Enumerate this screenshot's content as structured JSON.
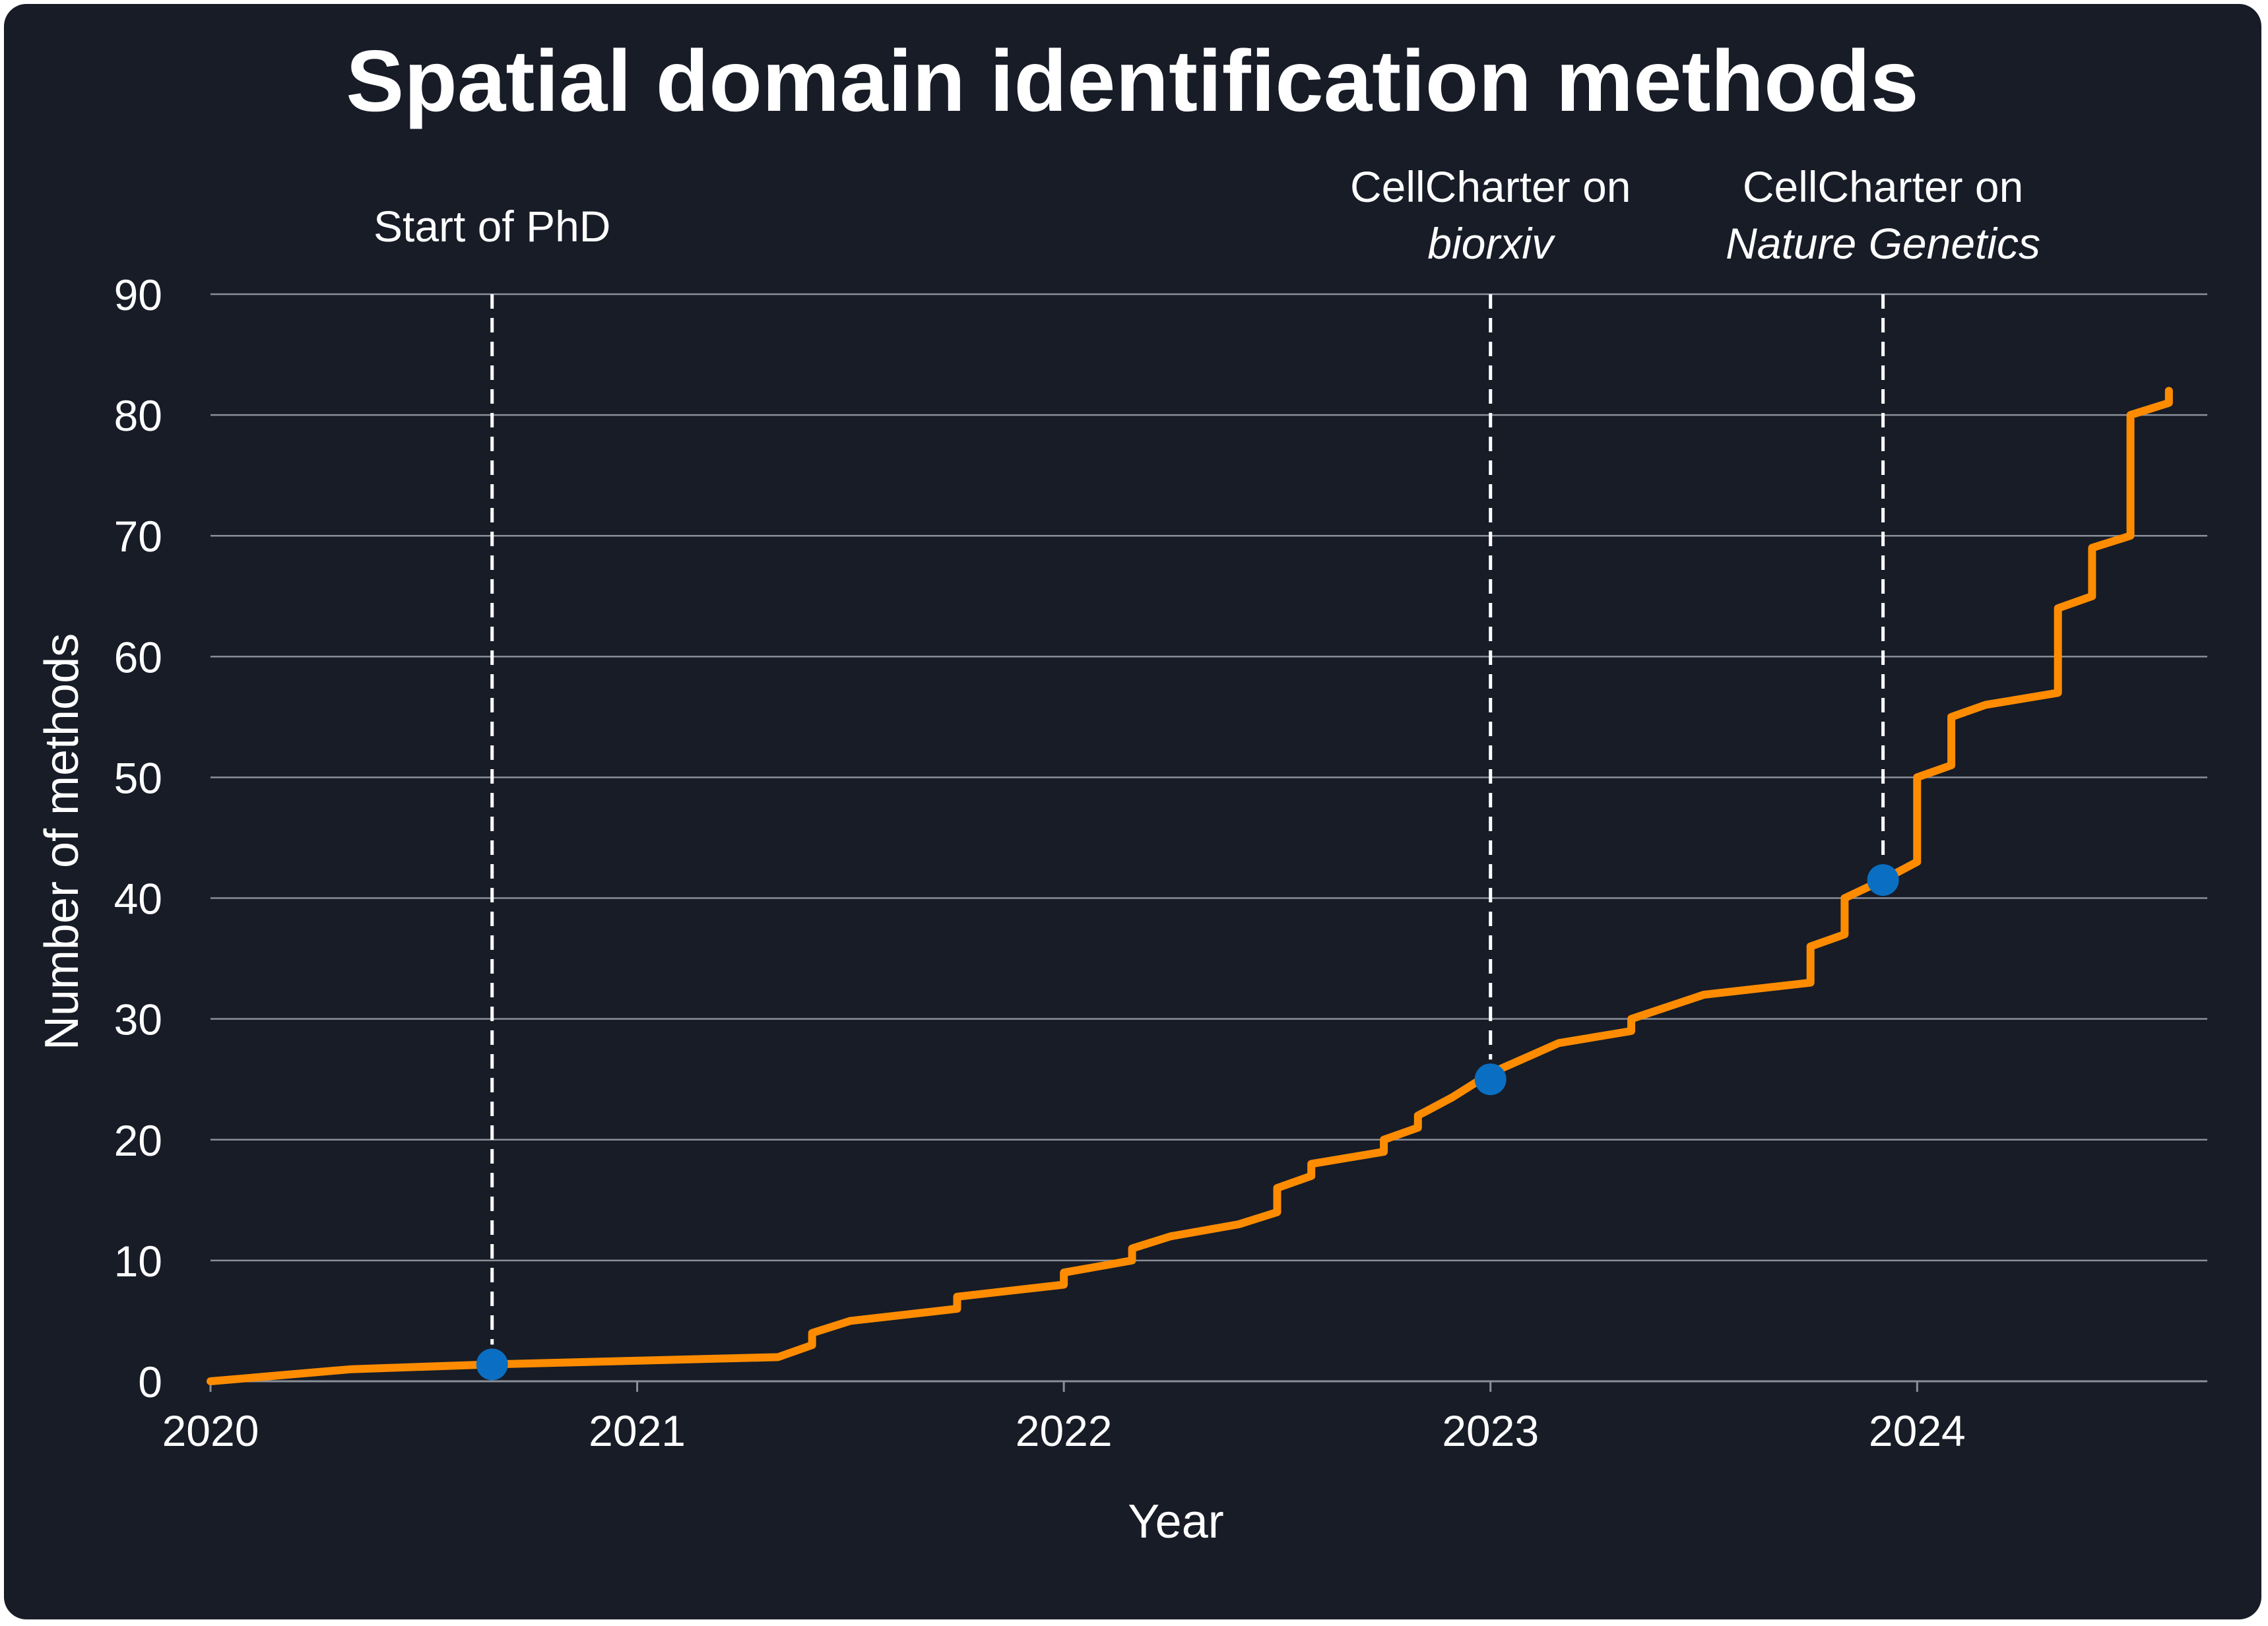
{
  "colors": {
    "background": "#171c27",
    "line": "#ff8c00",
    "marker": "#0a6fc2",
    "grid": "#8a8f99",
    "text": "#ffffff"
  },
  "chart_data": {
    "type": "line",
    "title": "Spatial domain identification methods",
    "xlabel": "Year",
    "ylabel": "Number of methods",
    "xlim": [
      2020,
      2024.68
    ],
    "ylim": [
      0,
      90
    ],
    "x_ticks": [
      "2020",
      "2021",
      "2022",
      "2023",
      "2024"
    ],
    "y_ticks": [
      "0",
      "10",
      "20",
      "30",
      "40",
      "50",
      "60",
      "70",
      "80",
      "90"
    ],
    "grid": "horizontal",
    "series": [
      {
        "x": [
          2020.0,
          2020.33,
          2020.66,
          2021.33,
          2021.41,
          2021.41,
          2021.5,
          2021.75,
          2021.75,
          2022.0,
          2022.0,
          2022.16,
          2022.16,
          2022.25,
          2022.41,
          2022.5,
          2022.5,
          2022.58,
          2022.58,
          2022.75,
          2022.75,
          2022.83,
          2022.83,
          2022.91,
          2023.0,
          2023.16,
          2023.33,
          2023.33,
          2023.5,
          2023.75,
          2023.75,
          2023.83,
          2023.83,
          2023.92,
          2024.0,
          2024.0,
          2024.08,
          2024.08,
          2024.16,
          2024.33,
          2024.33,
          2024.41,
          2024.41,
          2024.5,
          2024.5,
          2024.59,
          2024.59
        ],
        "y": [
          0,
          1,
          1.4,
          2,
          3,
          4,
          5,
          6,
          7,
          8,
          9,
          10,
          11,
          12,
          13,
          14,
          16,
          17,
          18,
          19,
          20,
          21,
          22,
          23.5,
          25.5,
          28,
          29,
          30,
          32,
          33,
          36,
          37,
          40,
          41.5,
          43,
          50,
          51,
          55,
          56,
          57,
          64,
          65,
          69,
          70,
          80,
          81,
          82
        ]
      }
    ],
    "annotations": [
      {
        "x": 2020.66,
        "y": 1.4,
        "label_lines": [
          "Start of PhD"
        ]
      },
      {
        "x": 2023.0,
        "y": 25,
        "label_lines": [
          "CellCharter on",
          "biorxiv"
        ]
      },
      {
        "x": 2023.92,
        "y": 41.5,
        "label_lines": [
          "CellCharter on",
          "Nature Genetics"
        ]
      }
    ]
  }
}
